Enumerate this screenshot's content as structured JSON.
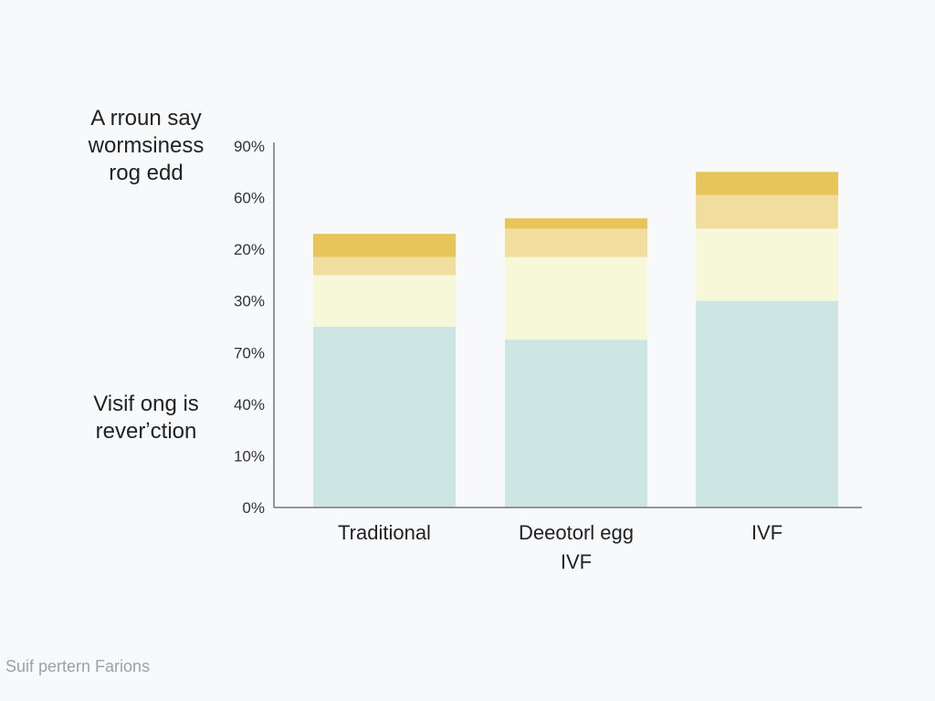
{
  "annotations": {
    "top": [
      "A rroun say",
      "wormsiness",
      "rog edd"
    ],
    "bottom": [
      "Visif ong is",
      "reverʼction"
    ]
  },
  "footer": "Suif pertern Farions",
  "colors": {
    "segment_1": "#cde6e3",
    "segment_2": "#f7f7d9",
    "segment_3": "#f1dd9e",
    "segment_4": "#e8c55a",
    "axis": "#777777"
  },
  "chart_data": {
    "type": "bar",
    "stacked": true,
    "categories": [
      [
        "Traditional"
      ],
      [
        "Deeotorl egg",
        "IVF"
      ],
      [
        "IVF"
      ]
    ],
    "y_tick_labels": [
      "0%",
      "10%",
      "40%",
      "70%",
      "30%",
      "20%",
      "60%",
      "90%"
    ],
    "y_tick_positions": [
      0,
      1,
      2,
      3,
      4,
      5,
      6,
      7
    ],
    "ylim": [
      0,
      7
    ],
    "grid": false,
    "series": [
      {
        "values": [
          3.5,
          3.25,
          4.0
        ]
      },
      {
        "values": [
          1.0,
          1.6,
          1.4
        ]
      },
      {
        "values": [
          0.35,
          0.55,
          0.65
        ]
      },
      {
        "values": [
          0.45,
          0.2,
          0.45
        ]
      }
    ],
    "title": "",
    "xlabel": "",
    "ylabel": ""
  }
}
